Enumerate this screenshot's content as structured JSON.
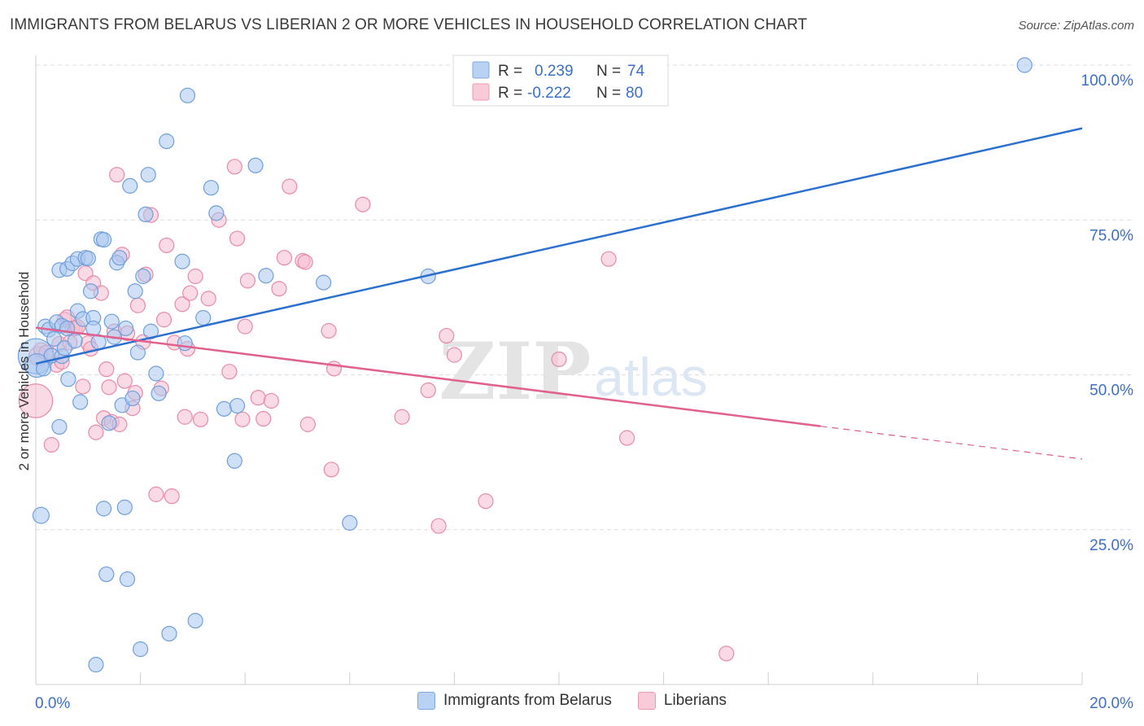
{
  "title": "IMMIGRANTS FROM BELARUS VS LIBERIAN 2 OR MORE VEHICLES IN HOUSEHOLD CORRELATION CHART",
  "source": "Source: ZipAtlas.com",
  "watermark": {
    "zip": "ZIP",
    "atlas": "atlas"
  },
  "colors": {
    "blue_fill": "#a9c6ee",
    "blue_stroke": "#6f9fdc",
    "blue_line": "#2b6fcf",
    "pink_fill": "#f6bccd",
    "pink_stroke": "#e88aa8",
    "pink_line": "#e0608e",
    "tick_label": "#3b6fc9",
    "grid": "#dddddd",
    "axis": "#cfcfcf"
  },
  "legend_box": [
    {
      "r_label": "R =",
      "r_value": "0.239",
      "n_label": "N =",
      "n_value": "74",
      "series": "blue"
    },
    {
      "r_label": "R =",
      "r_value": "-0.222",
      "n_label": "N =",
      "n_value": "80",
      "series": "pink"
    }
  ],
  "chart_data": {
    "type": "scatter",
    "title": "IMMIGRANTS FROM BELARUS VS LIBERIAN 2 OR MORE VEHICLES IN HOUSEHOLD CORRELATION CHART",
    "xlabel": "",
    "ylabel": "2 or more Vehicles in Household",
    "xlim": [
      0,
      20
    ],
    "ylim": [
      0,
      100
    ],
    "x_tick_labels": [
      "0.0%",
      "20.0%"
    ],
    "y_ticks": [
      25,
      50,
      75,
      100
    ],
    "y_tick_labels": [
      "25.0%",
      "50.0%",
      "75.0%",
      "100.0%"
    ],
    "grid": true,
    "legend_position": "top-center",
    "series": [
      {
        "name": "Immigrants from Belarus",
        "color": "blue",
        "trend": {
          "x": [
            0,
            20
          ],
          "y": [
            51.8,
            89.8
          ],
          "dashed_from": null
        },
        "points": [
          [
            0.0,
            53.0,
            2.4
          ],
          [
            0.02,
            51.5,
            1.6
          ],
          [
            0.1,
            27.3,
            1.1
          ],
          [
            0.15,
            51.0,
            1
          ],
          [
            0.18,
            57.8,
            1
          ],
          [
            0.25,
            57.3,
            1
          ],
          [
            0.3,
            53.1,
            1
          ],
          [
            0.35,
            55.8,
            1
          ],
          [
            0.4,
            58.5,
            1
          ],
          [
            0.45,
            41.6,
            1
          ],
          [
            0.45,
            66.9,
            1
          ],
          [
            0.5,
            53.0,
            1
          ],
          [
            0.5,
            57.9,
            1
          ],
          [
            0.55,
            54.3,
            1
          ],
          [
            0.6,
            67.1,
            1
          ],
          [
            0.6,
            57.5,
            1
          ],
          [
            0.62,
            49.3,
            1
          ],
          [
            0.7,
            68.0,
            1
          ],
          [
            0.75,
            55.5,
            1
          ],
          [
            0.8,
            60.3,
            1
          ],
          [
            0.8,
            68.7,
            1
          ],
          [
            0.85,
            45.6,
            1
          ],
          [
            0.9,
            59.0,
            1
          ],
          [
            0.95,
            68.9,
            1
          ],
          [
            1.0,
            68.8,
            1
          ],
          [
            1.05,
            63.5,
            1
          ],
          [
            1.1,
            59.2,
            1
          ],
          [
            1.1,
            57.5,
            1
          ],
          [
            1.15,
            3.2,
            1
          ],
          [
            1.2,
            55.3,
            1
          ],
          [
            1.25,
            71.9,
            1
          ],
          [
            1.3,
            71.8,
            1
          ],
          [
            1.3,
            28.4,
            1
          ],
          [
            1.35,
            17.8,
            1
          ],
          [
            1.4,
            42.2,
            1
          ],
          [
            1.45,
            58.6,
            1
          ],
          [
            1.5,
            56.1,
            1
          ],
          [
            1.55,
            68.1,
            1
          ],
          [
            1.6,
            68.9,
            1
          ],
          [
            1.65,
            45.1,
            1
          ],
          [
            1.7,
            28.6,
            1
          ],
          [
            1.72,
            57.5,
            1
          ],
          [
            1.75,
            17.0,
            1
          ],
          [
            1.8,
            80.5,
            1
          ],
          [
            1.85,
            46.2,
            1
          ],
          [
            1.9,
            63.5,
            1
          ],
          [
            1.95,
            53.6,
            1
          ],
          [
            2.0,
            5.7,
            1
          ],
          [
            2.05,
            65.9,
            1
          ],
          [
            2.1,
            75.9,
            1
          ],
          [
            2.15,
            82.3,
            1
          ],
          [
            2.2,
            57.0,
            1
          ],
          [
            2.3,
            50.2,
            1
          ],
          [
            2.35,
            47.0,
            1
          ],
          [
            2.5,
            87.7,
            1
          ],
          [
            2.55,
            8.2,
            1
          ],
          [
            2.8,
            68.3,
            1
          ],
          [
            2.85,
            55.1,
            1
          ],
          [
            2.9,
            95.1,
            1
          ],
          [
            3.05,
            10.3,
            1
          ],
          [
            3.2,
            59.2,
            1
          ],
          [
            3.35,
            80.2,
            1
          ],
          [
            3.45,
            76.1,
            1
          ],
          [
            3.6,
            44.5,
            1
          ],
          [
            3.8,
            36.1,
            1
          ],
          [
            3.85,
            45.0,
            1
          ],
          [
            4.2,
            83.8,
            1
          ],
          [
            4.4,
            66.0,
            1
          ],
          [
            5.5,
            64.9,
            1
          ],
          [
            6.0,
            26.1,
            1
          ],
          [
            7.5,
            65.9,
            1
          ],
          [
            18.9,
            100.0,
            1
          ]
        ]
      },
      {
        "name": "Liberians",
        "color": "pink",
        "trend": {
          "x": [
            0,
            20
          ],
          "y": [
            57.6,
            36.4
          ],
          "dashed_from": 15
        },
        "points": [
          [
            0.0,
            45.8,
            2.3
          ],
          [
            0.05,
            53.0,
            1.3
          ],
          [
            0.1,
            54.0,
            1
          ],
          [
            0.2,
            53.6,
            1
          ],
          [
            0.3,
            38.7,
            1
          ],
          [
            0.4,
            51.6,
            1
          ],
          [
            0.45,
            55.0,
            1
          ],
          [
            0.5,
            52.1,
            1
          ],
          [
            0.55,
            58.9,
            1
          ],
          [
            0.6,
            59.3,
            1
          ],
          [
            0.65,
            55.2,
            1
          ],
          [
            0.7,
            57.5,
            1
          ],
          [
            0.75,
            57.5,
            1
          ],
          [
            0.8,
            57.7,
            1
          ],
          [
            0.9,
            48.1,
            1
          ],
          [
            0.95,
            66.4,
            1
          ],
          [
            1.0,
            55.1,
            1
          ],
          [
            1.05,
            54.2,
            1
          ],
          [
            1.1,
            64.8,
            1
          ],
          [
            1.15,
            40.7,
            1
          ],
          [
            1.25,
            63.2,
            1
          ],
          [
            1.3,
            43.0,
            1
          ],
          [
            1.35,
            50.9,
            1
          ],
          [
            1.4,
            48.0,
            1
          ],
          [
            1.45,
            42.4,
            1
          ],
          [
            1.5,
            57.0,
            1
          ],
          [
            1.55,
            82.3,
            1
          ],
          [
            1.6,
            42.0,
            1
          ],
          [
            1.65,
            69.4,
            1
          ],
          [
            1.7,
            49.0,
            1
          ],
          [
            1.75,
            56.7,
            1
          ],
          [
            1.85,
            44.6,
            1
          ],
          [
            1.9,
            47.1,
            1
          ],
          [
            1.95,
            61.2,
            1
          ],
          [
            2.05,
            55.3,
            1
          ],
          [
            2.1,
            66.2,
            1
          ],
          [
            2.2,
            75.8,
            1
          ],
          [
            2.3,
            30.7,
            1
          ],
          [
            2.4,
            47.8,
            1
          ],
          [
            2.45,
            58.9,
            1
          ],
          [
            2.5,
            70.9,
            1
          ],
          [
            2.6,
            30.4,
            1
          ],
          [
            2.65,
            55.2,
            1
          ],
          [
            2.8,
            61.4,
            1
          ],
          [
            2.85,
            43.2,
            1
          ],
          [
            2.9,
            54.2,
            1
          ],
          [
            2.95,
            63.2,
            1
          ],
          [
            3.05,
            65.9,
            1
          ],
          [
            3.15,
            42.8,
            1
          ],
          [
            3.3,
            62.3,
            1
          ],
          [
            3.5,
            75.0,
            1
          ],
          [
            3.7,
            50.5,
            1
          ],
          [
            3.8,
            83.6,
            1
          ],
          [
            3.85,
            72.0,
            1
          ],
          [
            3.95,
            42.8,
            1
          ],
          [
            4.0,
            57.8,
            1
          ],
          [
            4.05,
            65.2,
            1
          ],
          [
            4.25,
            46.3,
            1
          ],
          [
            4.35,
            42.9,
            1
          ],
          [
            4.5,
            45.8,
            1
          ],
          [
            4.65,
            63.9,
            1
          ],
          [
            4.75,
            68.9,
            1
          ],
          [
            4.85,
            80.4,
            1
          ],
          [
            5.1,
            68.4,
            1
          ],
          [
            5.15,
            68.2,
            1
          ],
          [
            5.2,
            42.0,
            1
          ],
          [
            5.6,
            57.1,
            1
          ],
          [
            5.65,
            34.7,
            1
          ],
          [
            5.7,
            51.0,
            1
          ],
          [
            6.25,
            77.5,
            1
          ],
          [
            7.0,
            43.2,
            1
          ],
          [
            7.5,
            47.5,
            1
          ],
          [
            7.7,
            25.6,
            1
          ],
          [
            7.85,
            56.3,
            1
          ],
          [
            8.0,
            53.2,
            1
          ],
          [
            8.6,
            29.6,
            1
          ],
          [
            10.0,
            52.5,
            1
          ],
          [
            10.95,
            68.7,
            1
          ],
          [
            11.3,
            39.8,
            1
          ],
          [
            13.2,
            5.0,
            1
          ]
        ]
      }
    ]
  },
  "bottom_legend": [
    {
      "label": "Immigrants from Belarus",
      "color": "blue"
    },
    {
      "label": "Liberians",
      "color": "pink"
    }
  ]
}
